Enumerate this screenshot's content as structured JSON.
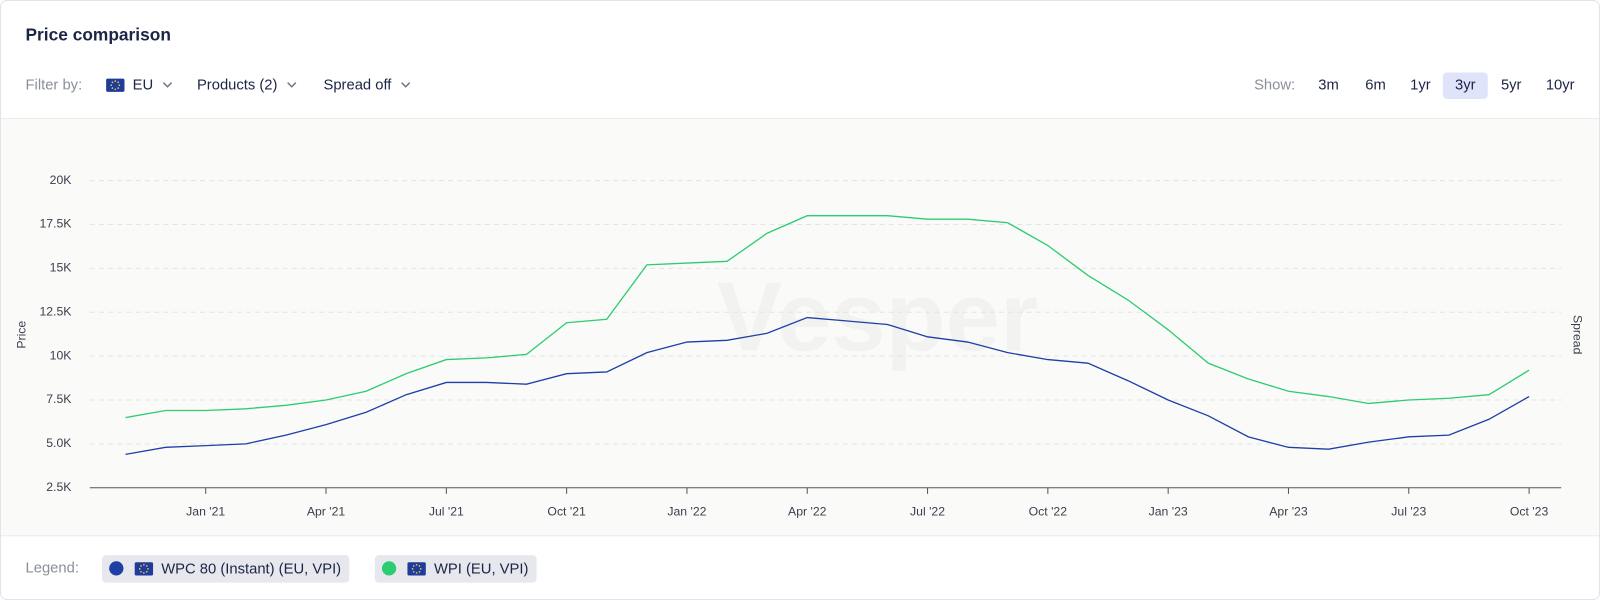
{
  "header": {
    "title": "Price comparison"
  },
  "filters": {
    "label": "Filter by:",
    "items": [
      "EU",
      "Products (2)",
      "Spread off"
    ]
  },
  "show": {
    "label": "Show:",
    "options": [
      "3m",
      "6m",
      "1yr",
      "3yr",
      "5yr",
      "10yr"
    ],
    "selected": "3yr"
  },
  "legend": {
    "label": "Legend:"
  },
  "chart_data": {
    "type": "line",
    "y_label": "Price",
    "y2_label": "Spread",
    "watermark": "Vesper",
    "categories": [
      null,
      null,
      "Jan '21",
      null,
      null,
      "Apr '21",
      null,
      null,
      "Jul '21",
      null,
      null,
      "Oct '21",
      null,
      null,
      "Jan '22",
      null,
      null,
      "Apr '22",
      null,
      null,
      "Jul '22",
      null,
      null,
      "Oct '22",
      null,
      null,
      "Jan '23",
      null,
      null,
      "Apr '23",
      null,
      null,
      "Jul '23",
      null,
      null,
      "Oct '23"
    ],
    "series": [
      {
        "name": "WPC 80 (Instant) (EU, VPI)",
        "color": "#1f3fa6",
        "values": [
          4400,
          4800,
          4900,
          5000,
          5500,
          6100,
          6800,
          7800,
          8500,
          8500,
          8400,
          9000,
          9100,
          10200,
          10800,
          10900,
          11300,
          12200,
          12000,
          11800,
          11100,
          10800,
          10200,
          9800,
          9600,
          8600,
          7500,
          6600,
          5400,
          4800,
          4700,
          5100,
          5400,
          5500,
          6400,
          7700
        ]
      },
      {
        "name": "WPI (EU, VPI)",
        "color": "#2ecc71",
        "values": [
          6500,
          6900,
          6900,
          7000,
          7200,
          7500,
          8000,
          9000,
          9800,
          9900,
          10100,
          11900,
          12100,
          15200,
          15300,
          15400,
          17000,
          18000,
          18000,
          18000,
          17800,
          17800,
          17600,
          16300,
          14600,
          13200,
          11500,
          9600,
          8700,
          8000,
          7700,
          7300,
          7500,
          7600,
          7800,
          9200
        ]
      }
    ],
    "ylim": [
      2500,
      20000
    ],
    "yticks": [
      {
        "value": 2500,
        "label": "2.5K"
      },
      {
        "value": 5000,
        "label": "5.0K"
      },
      {
        "value": 7500,
        "label": "7.5K"
      },
      {
        "value": 10000,
        "label": "10K"
      },
      {
        "value": 12500,
        "label": "12.5K"
      },
      {
        "value": 15000,
        "label": "15K"
      },
      {
        "value": 17500,
        "label": "17.5K"
      },
      {
        "value": 20000,
        "label": "20K"
      }
    ],
    "grid": true
  }
}
